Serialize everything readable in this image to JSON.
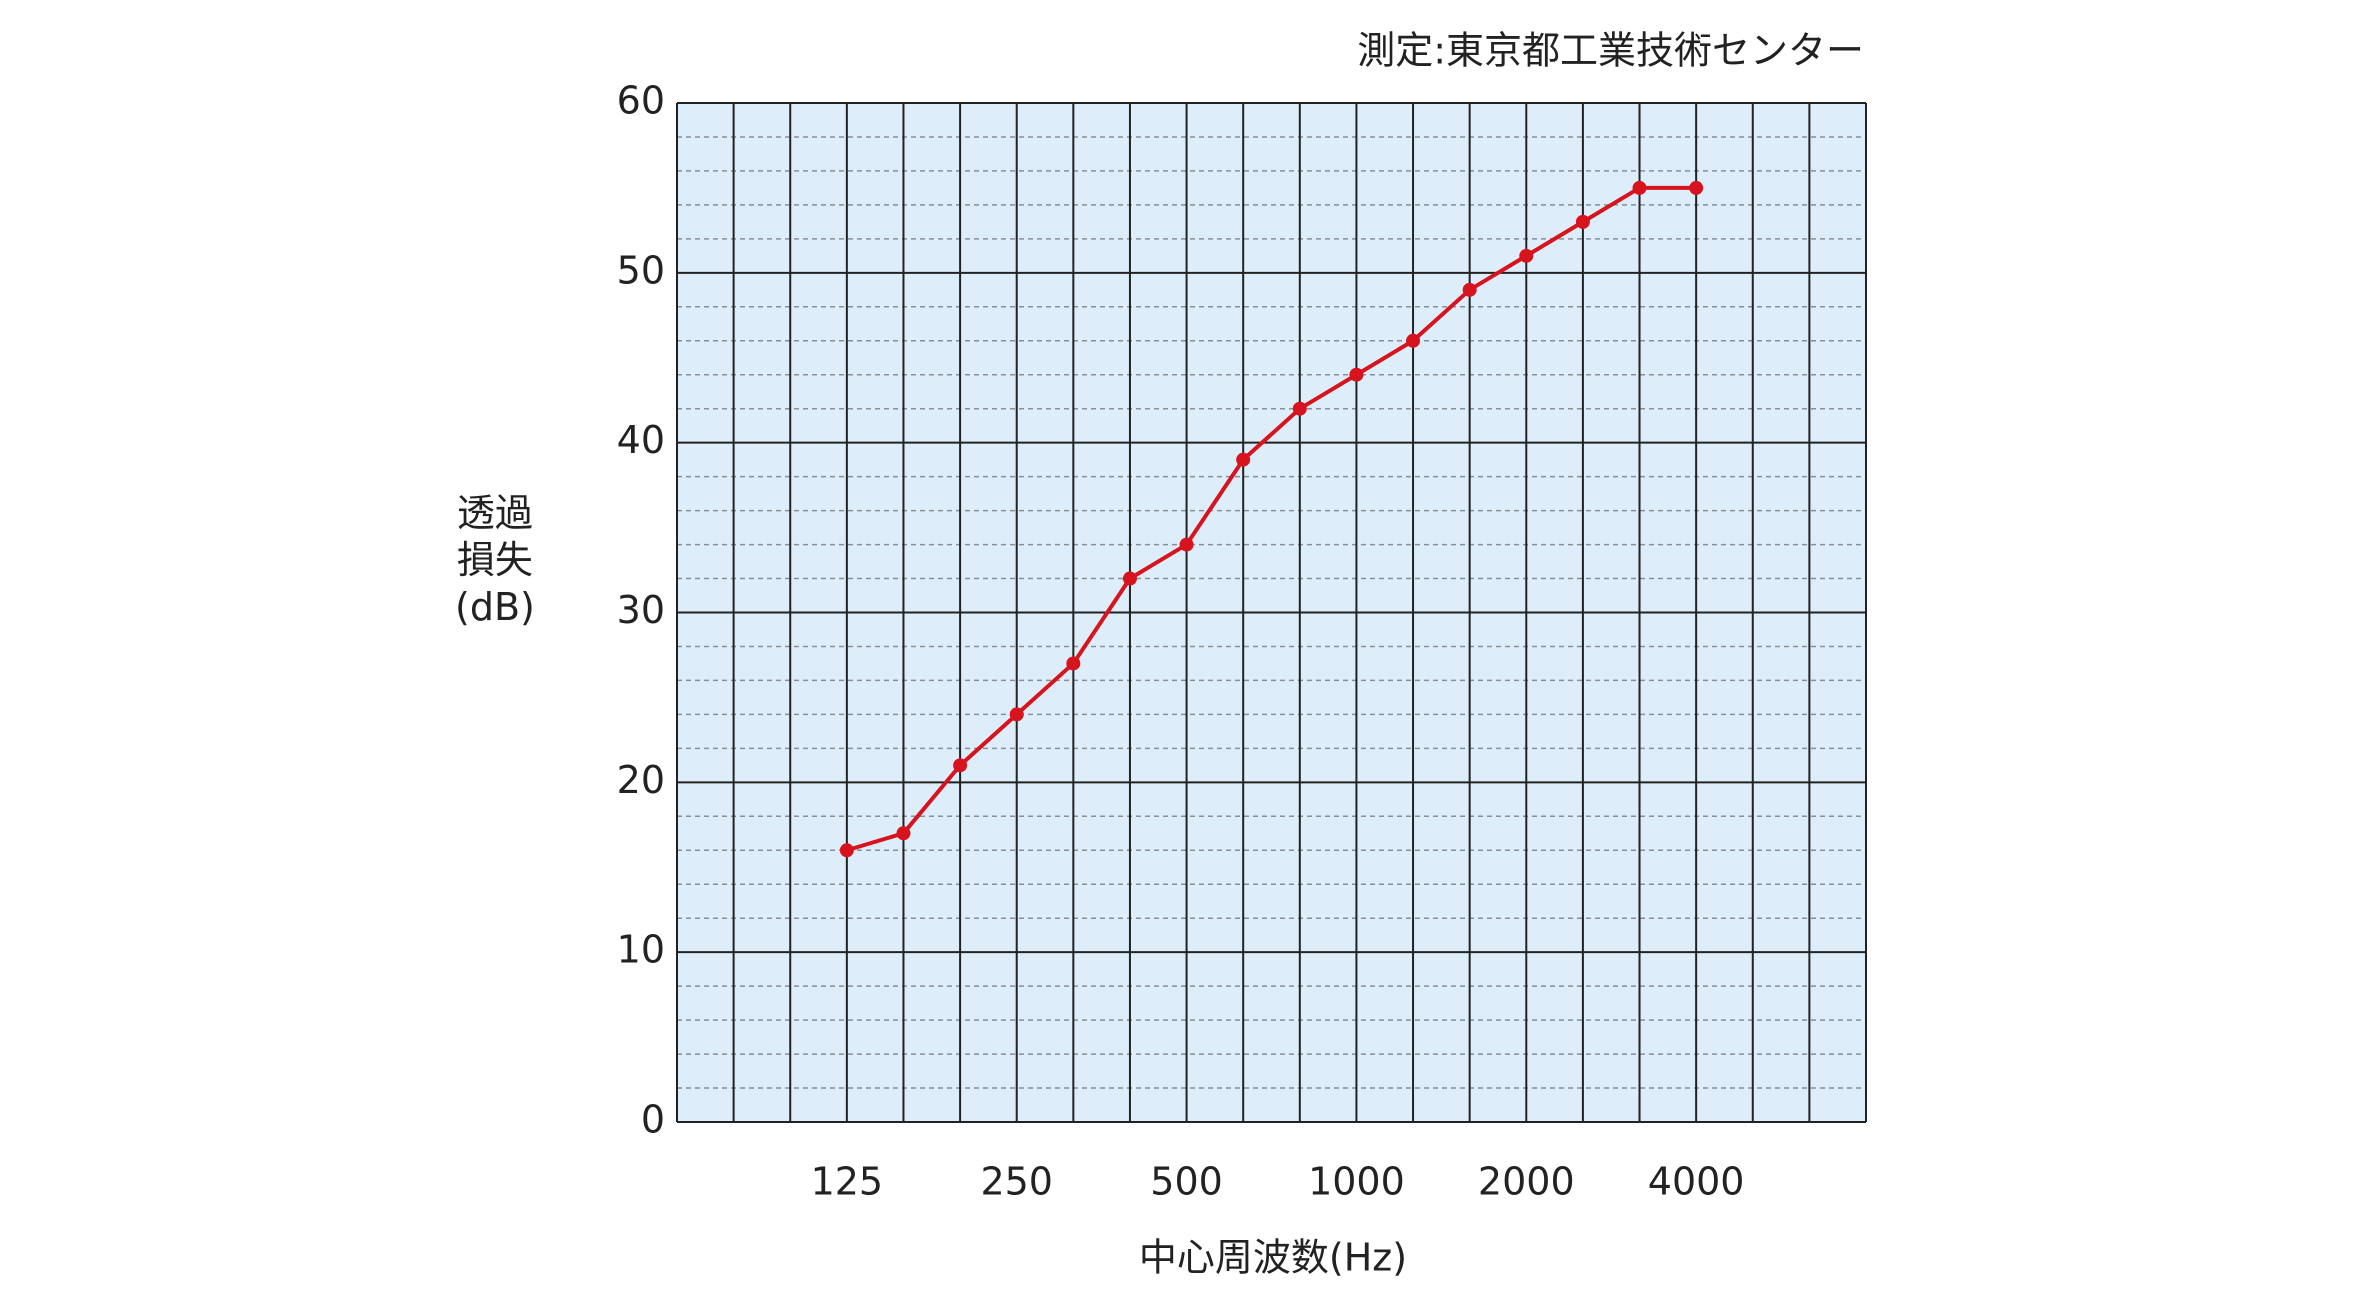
{
  "chart_data": {
    "type": "line",
    "source_note": "測定:東京都工業技術センター",
    "x_label": "中心周波数(Hz)",
    "y_label": "透過損失(dB)",
    "categories": [
      null,
      null,
      null,
      "125",
      null,
      null,
      "250",
      null,
      null,
      "500",
      null,
      null,
      "1000",
      null,
      null,
      "2000",
      null,
      null,
      "4000",
      null,
      null,
      null
    ],
    "series": [
      {
        "name": "透過損失",
        "color": "#d7141e",
        "values": [
          null,
          null,
          null,
          16,
          17,
          21,
          24,
          27,
          32,
          34,
          39,
          42,
          44,
          46,
          49,
          51,
          53,
          55,
          55,
          null,
          null,
          null
        ]
      }
    ],
    "ylim": [
      0,
      60
    ],
    "yticks": [
      0,
      10,
      20,
      30,
      40,
      50,
      60
    ],
    "minor_yticks": [
      2,
      4,
      6,
      8,
      12,
      14,
      16,
      18,
      22,
      24,
      26,
      28,
      32,
      34,
      36,
      38,
      42,
      44,
      46,
      48,
      52,
      54,
      56,
      58
    ],
    "grid": true,
    "plot_background": "#ddeefa"
  }
}
